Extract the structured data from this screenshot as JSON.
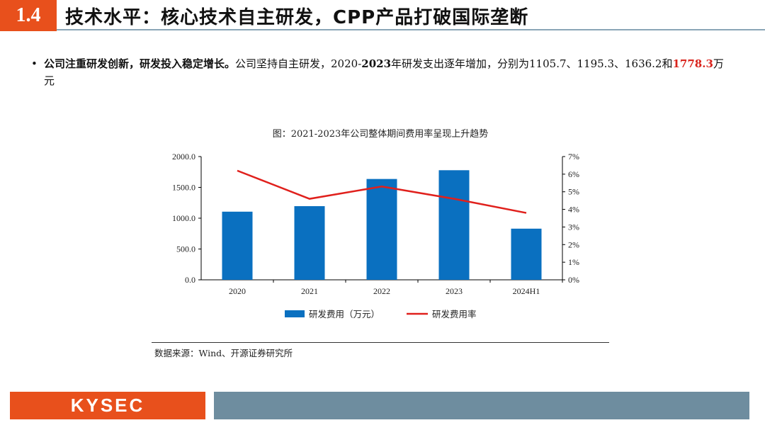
{
  "header": {
    "section_number": "1.4",
    "title": "技术水平：核心技术自主研发，CPP产品打破国际垄断"
  },
  "bullet": {
    "lead": "公司注重研发创新，研发投入稳定增长。",
    "body_1": "公司坚持自主研发，2020-",
    "body_year": "2023",
    "body_2": "年研发支出逐年增加，分别为1105.7、1195.3、1636.2和",
    "body_highlight": "1778.3",
    "body_3": "万元"
  },
  "chart_title": "图：2021-2023年公司整体期间费用率呈现上升趋势",
  "source": "数据来源：Wind、开源证券研究所",
  "footer": {
    "logo": "KYSEC"
  },
  "colors": {
    "bar": "#0a70c0",
    "line": "#e0201c",
    "accent": "#e8501c"
  },
  "chart_data": {
    "type": "bar",
    "categories": [
      "2020",
      "2021",
      "2022",
      "2023",
      "2024H1"
    ],
    "series": [
      {
        "name": "研发费用（万元）",
        "type": "bar",
        "axis": "left",
        "values": [
          1105.7,
          1195.3,
          1636.2,
          1778.3,
          830.0
        ]
      },
      {
        "name": "研发费用率",
        "type": "line",
        "axis": "right",
        "values": [
          6.2,
          4.6,
          5.3,
          4.6,
          3.8
        ]
      }
    ],
    "y_left": {
      "ticks": [
        "0.0",
        "500.0",
        "1000.0",
        "1500.0",
        "2000.0"
      ],
      "ylim": [
        0,
        2000
      ]
    },
    "y_right": {
      "ticks": [
        "0%",
        "1%",
        "2%",
        "3%",
        "4%",
        "5%",
        "6%",
        "7%"
      ],
      "ylim": [
        0,
        7
      ]
    },
    "legend_position": "bottom",
    "grid": false
  }
}
